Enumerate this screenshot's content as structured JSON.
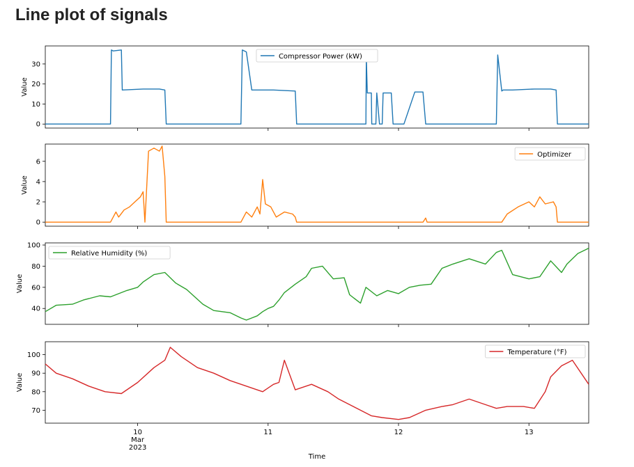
{
  "page": {
    "title": "Line plot of signals"
  },
  "chart_data": {
    "type": "line",
    "shared_x": true,
    "xlabel": "Time",
    "x_ticks": [
      {
        "value": "2023-03-10",
        "label": "10",
        "sublabel_1": "Mar",
        "sublabel_2": "2023"
      },
      {
        "value": "2023-03-11",
        "label": "11"
      },
      {
        "value": "2023-03-12",
        "label": "12"
      },
      {
        "value": "2023-03-13",
        "label": "13"
      }
    ],
    "xlim": [
      "2023-03-09 07:00",
      "2023-03-13 11:00"
    ],
    "grid": false,
    "subplots": [
      {
        "ylabel": "Value",
        "ylim": [
          -2,
          39
        ],
        "yticks": [
          0,
          10,
          20,
          30
        ],
        "legend_loc": "upper center",
        "series": [
          {
            "name": "Compressor Power (kW)",
            "color": "#1f77b4",
            "x": [
              "2023-03-09 07:00",
              "2023-03-09 19:00",
              "2023-03-09 19:10",
              "2023-03-09 19:30",
              "2023-03-09 21:00",
              "2023-03-09 21:10",
              "2023-03-10 01:00",
              "2023-03-10 04:00",
              "2023-03-10 05:00",
              "2023-03-10 05:15",
              "2023-03-10 07:00",
              "2023-03-10 19:00",
              "2023-03-10 19:15",
              "2023-03-10 20:00",
              "2023-03-10 21:00",
              "2023-03-11 01:00",
              "2023-03-11 05:00",
              "2023-03-11 05:15",
              "2023-03-11 18:00",
              "2023-03-11 18:05",
              "2023-03-11 18:15",
              "2023-03-11 19:00",
              "2023-03-11 19:05",
              "2023-03-11 19:50",
              "2023-03-11 20:00",
              "2023-03-11 20:30",
              "2023-03-11 21:00",
              "2023-03-11 21:10",
              "2023-03-11 22:40",
              "2023-03-11 23:00",
              "2023-03-11 23:15",
              "2023-03-12 01:00",
              "2023-03-12 03:00",
              "2023-03-12 04:30",
              "2023-03-12 05:00",
              "2023-03-12 05:15",
              "2023-03-12 18:00",
              "2023-03-12 18:15",
              "2023-03-12 19:00",
              "2023-03-12 19:15",
              "2023-03-12 21:00",
              "2023-03-13 01:00",
              "2023-03-13 04:00",
              "2023-03-13 05:00",
              "2023-03-13 05:15",
              "2023-03-13 11:00"
            ],
            "y": [
              0,
              0,
              37,
              36.5,
              37,
              17,
              17.5,
              17.5,
              17,
              0,
              0,
              0,
              37,
              36,
              17,
              17,
              16.5,
              0,
              0,
              33.5,
              15.5,
              15.5,
              0,
              0,
              15.5,
              0,
              0,
              15.5,
              15.5,
              0,
              0,
              0,
              16,
              16,
              0,
              0,
              0,
              34.5,
              16.5,
              17,
              17,
              17.5,
              17.5,
              17,
              0,
              0
            ]
          }
        ]
      },
      {
        "ylabel": "Value",
        "ylim": [
          -0.4,
          7.7
        ],
        "yticks": [
          0,
          2,
          4,
          6
        ],
        "legend_loc": "upper right",
        "series": [
          {
            "name": "Optimizer",
            "color": "#ff7f0e",
            "x": [
              "2023-03-09 07:00",
              "2023-03-09 19:00",
              "2023-03-09 20:00",
              "2023-03-09 20:30",
              "2023-03-09 21:30",
              "2023-03-09 22:30",
              "2023-03-09 23:30",
              "2023-03-10 00:30",
              "2023-03-10 01:00",
              "2023-03-10 01:20",
              "2023-03-10 01:40",
              "2023-03-10 02:00",
              "2023-03-10 03:00",
              "2023-03-10 04:00",
              "2023-03-10 04:30",
              "2023-03-10 05:00",
              "2023-03-10 05:15",
              "2023-03-10 19:00",
              "2023-03-10 20:00",
              "2023-03-10 21:00",
              "2023-03-10 22:00",
              "2023-03-10 22:30",
              "2023-03-10 23:00",
              "2023-03-10 23:30",
              "2023-03-11 00:30",
              "2023-03-11 01:30",
              "2023-03-11 03:00",
              "2023-03-11 04:30",
              "2023-03-11 05:00",
              "2023-03-11 05:15",
              "2023-03-12 04:30",
              "2023-03-12 05:00",
              "2023-03-12 05:15",
              "2023-03-12 19:00",
              "2023-03-12 20:00",
              "2023-03-12 22:00",
              "2023-03-13 00:00",
              "2023-03-13 01:00",
              "2023-03-13 02:00",
              "2023-03-13 03:00",
              "2023-03-13 04:30",
              "2023-03-13 05:00",
              "2023-03-13 05:15",
              "2023-03-13 11:00"
            ],
            "y": [
              0,
              0,
              1,
              0.5,
              1.2,
              1.5,
              2,
              2.5,
              3,
              0,
              3.5,
              7,
              7.3,
              7,
              7.5,
              4.5,
              0,
              0,
              1,
              0.5,
              1.5,
              0.8,
              4.2,
              1.8,
              1.5,
              0.5,
              1,
              0.8,
              0.5,
              0,
              0,
              0.4,
              0,
              0,
              0.8,
              1.5,
              2,
              1.5,
              2.5,
              1.8,
              2,
              1.5,
              0,
              0
            ]
          }
        ]
      },
      {
        "ylabel": "Value",
        "ylim": [
          25,
          102
        ],
        "yticks": [
          40,
          60,
          80,
          100
        ],
        "legend_loc": "upper left",
        "series": [
          {
            "name": "Relative Humidity (%)",
            "color": "#2ca02c",
            "x": [
              "2023-03-09 07:00",
              "2023-03-09 09:00",
              "2023-03-09 12:00",
              "2023-03-09 14:00",
              "2023-03-09 17:00",
              "2023-03-09 19:00",
              "2023-03-09 22:00",
              "2023-03-10 00:00",
              "2023-03-10 01:00",
              "2023-03-10 03:00",
              "2023-03-10 05:00",
              "2023-03-10 07:00",
              "2023-03-10 09:00",
              "2023-03-10 12:00",
              "2023-03-10 14:00",
              "2023-03-10 17:00",
              "2023-03-10 19:00",
              "2023-03-10 20:00",
              "2023-03-10 21:00",
              "2023-03-10 22:00",
              "2023-03-10 23:00",
              "2023-03-11 00:00",
              "2023-03-11 01:00",
              "2023-03-11 02:00",
              "2023-03-11 03:00",
              "2023-03-11 05:00",
              "2023-03-11 07:00",
              "2023-03-11 08:00",
              "2023-03-11 10:00",
              "2023-03-11 12:00",
              "2023-03-11 14:00",
              "2023-03-11 15:00",
              "2023-03-11 17:00",
              "2023-03-11 18:00",
              "2023-03-11 20:00",
              "2023-03-11 22:00",
              "2023-03-12 00:00",
              "2023-03-12 02:00",
              "2023-03-12 04:00",
              "2023-03-12 06:00",
              "2023-03-12 08:00",
              "2023-03-12 10:00",
              "2023-03-12 13:00",
              "2023-03-12 16:00",
              "2023-03-12 18:00",
              "2023-03-12 19:00",
              "2023-03-12 21:00",
              "2023-03-13 00:00",
              "2023-03-13 02:00",
              "2023-03-13 04:00",
              "2023-03-13 06:00",
              "2023-03-13 07:00",
              "2023-03-13 09:00",
              "2023-03-13 11:00"
            ],
            "y": [
              37,
              43,
              44,
              48,
              52,
              51,
              57,
              60,
              65,
              72,
              74,
              64,
              58,
              44,
              38,
              36,
              31,
              29,
              31,
              33,
              37,
              40,
              42,
              48,
              55,
              63,
              70,
              78,
              80,
              68,
              69,
              53,
              45,
              60,
              52,
              57,
              54,
              60,
              62,
              63,
              78,
              82,
              87,
              82,
              93,
              95,
              72,
              68,
              70,
              85,
              74,
              82,
              92,
              97
            ]
          }
        ]
      },
      {
        "ylabel": "Value",
        "ylim": [
          63,
          107
        ],
        "yticks": [
          70,
          80,
          90,
          100
        ],
        "legend_loc": "upper right",
        "series": [
          {
            "name": "Temperature (°F)",
            "color": "#d62728",
            "x": [
              "2023-03-09 07:00",
              "2023-03-09 09:00",
              "2023-03-09 12:00",
              "2023-03-09 15:00",
              "2023-03-09 18:00",
              "2023-03-09 21:00",
              "2023-03-10 00:00",
              "2023-03-10 03:00",
              "2023-03-10 05:00",
              "2023-03-10 06:00",
              "2023-03-10 08:00",
              "2023-03-10 11:00",
              "2023-03-10 14:00",
              "2023-03-10 17:00",
              "2023-03-10 20:00",
              "2023-03-10 23:00",
              "2023-03-11 01:00",
              "2023-03-11 02:00",
              "2023-03-11 03:00",
              "2023-03-11 05:00",
              "2023-03-11 08:00",
              "2023-03-11 11:00",
              "2023-03-11 13:00",
              "2023-03-11 15:00",
              "2023-03-11 17:00",
              "2023-03-11 19:00",
              "2023-03-11 21:00",
              "2023-03-12 00:00",
              "2023-03-12 02:00",
              "2023-03-12 05:00",
              "2023-03-12 08:00",
              "2023-03-12 10:00",
              "2023-03-12 13:00",
              "2023-03-12 16:00",
              "2023-03-12 18:00",
              "2023-03-12 20:00",
              "2023-03-12 23:00",
              "2023-03-13 01:00",
              "2023-03-13 03:00",
              "2023-03-13 04:00",
              "2023-03-13 06:00",
              "2023-03-13 08:00",
              "2023-03-13 11:00"
            ],
            "y": [
              95,
              90,
              87,
              83,
              80,
              79,
              85,
              93,
              97,
              104,
              99,
              93,
              90,
              86,
              83,
              80,
              84,
              85,
              97,
              81,
              84,
              80,
              76,
              73,
              70,
              67,
              66,
              65,
              66,
              70,
              72,
              73,
              76,
              73,
              71,
              72,
              72,
              71,
              80,
              88,
              94,
              97,
              84
            ]
          }
        ]
      }
    ]
  }
}
